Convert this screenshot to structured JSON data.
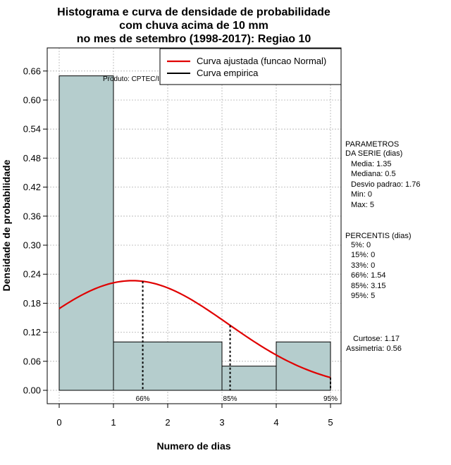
{
  "chart_data": {
    "type": "bar",
    "title_lines": [
      "Histograma e curva de densidade de probabilidade",
      "com chuva acima de 10 mm",
      "no mes de setembro (1998-2017): Regiao 10"
    ],
    "xlabel": "Numero de dias",
    "ylabel": "Densidade de probabilidade",
    "xlim": [
      -0.25,
      5.15
    ],
    "ylim": [
      -0.02,
      0.7
    ],
    "x_ticks": [
      0,
      1,
      2,
      3,
      4,
      5
    ],
    "y_ticks": [
      0.0,
      0.06,
      0.12,
      0.18,
      0.24,
      0.3,
      0.36,
      0.42,
      0.48,
      0.54,
      0.6,
      0.66
    ],
    "y_tick_labels": [
      "0.00",
      "0.06",
      "0.12",
      "0.18",
      "0.24",
      "0.30",
      "0.36",
      "0.42",
      "0.48",
      "0.54",
      "0.60",
      "0.66"
    ],
    "grid": true,
    "bar_color": "#b5cdcd",
    "curve_color": "#e00000",
    "bins": [
      {
        "x0": 0,
        "x1": 1,
        "density": 0.65
      },
      {
        "x0": 1,
        "x1": 3,
        "density": 0.1
      },
      {
        "x0": 3,
        "x1": 4,
        "density": 0.05
      },
      {
        "x0": 4,
        "x1": 5,
        "density": 0.1
      }
    ],
    "fitted_curve": {
      "name": "Curva ajustada (funcao Normal)",
      "mean": 1.35,
      "sd": 1.76,
      "x_start": 0,
      "x_end": 5
    },
    "empirical_curve_name": "Curva empirica",
    "percentile_markers": [
      {
        "x": 1.54,
        "label": "66%"
      },
      {
        "x": 3.15,
        "label": "85%"
      },
      {
        "x": 5,
        "label": "95%"
      }
    ],
    "legend_position": "top-right",
    "credit": "Produto: CPTEC/INPE"
  },
  "side_panel": {
    "params_title_1": "PARAMETROS",
    "params_title_2": "DA SERIE (dias)",
    "media": "Media: 1.35",
    "mediana": "Mediana: 0.5",
    "desvio": "Desvio padrao: 1.76",
    "min": "Min: 0",
    "max": "Max: 5",
    "perc_title": "PERCENTIS (dias)",
    "p5": "5%: 0",
    "p15": "15%: 0",
    "p33": "33%: 0",
    "p66": "66%: 1.54",
    "p85": "85%: 3.15",
    "p95": "95%: 5",
    "curtose": "Curtose: 1.17",
    "assimetria": "Assimetria: 0.56"
  }
}
